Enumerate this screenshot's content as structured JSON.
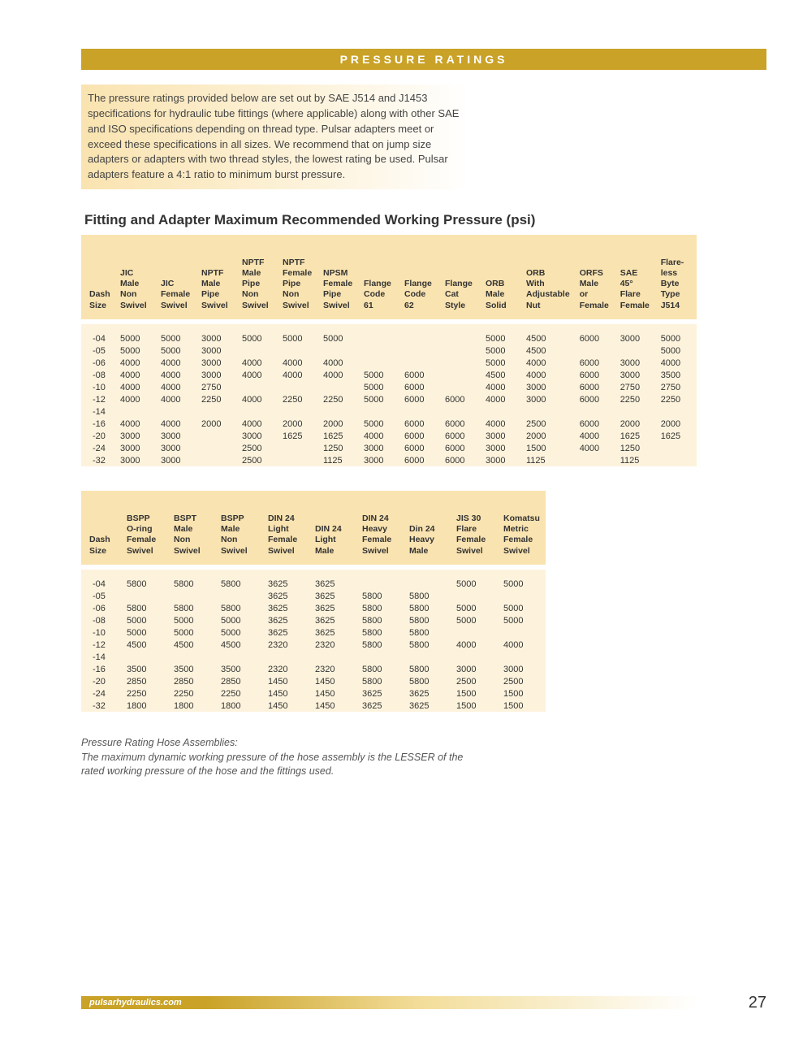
{
  "header": "PRESSURE RATINGS",
  "intro": "The pressure ratings provided below are set out by SAE J514 and J1453 specifications for hydraulic tube fittings (where applicable) along with other SAE and ISO specifications depending on thread type. Pulsar adapters meet or exceed these specifications in all sizes. We recommend that on jump size adapters or adapters with two thread styles, the lowest rating be used. Pulsar adapters feature a 4:1 ratio to minimum burst pressure.",
  "section_title": "Fitting and Adapter Maximum Recommended Working Pressure (psi)",
  "table1": {
    "columns": [
      "Dash\nSize",
      "JIC\nMale\nNon\nSwivel",
      "JIC\nFemale\nSwivel",
      "NPTF\nMale\nPipe\nSwivel",
      "NPTF\nMale\nPipe\nNon\nSwivel",
      "NPTF\nFemale\nPipe\nNon\nSwivel",
      "NPSM\nFemale\nPipe\nSwivel",
      "Flange\nCode\n61",
      "Flange\nCode\n62",
      "Flange\nCat\nStyle",
      "ORB\nMale\nSolid",
      "ORB\nWith\nAdjustable\nNut",
      "ORFS\nMale\nor\nFemale",
      "SAE\n45°\nFlare\nFemale",
      "Flare-\nless\nByte\nType\nJ514"
    ],
    "rows": [
      [
        "-04",
        "5000",
        "5000",
        "3000",
        "5000",
        "5000",
        "5000",
        "",
        "",
        "",
        "5000",
        "4500",
        "6000",
        "3000",
        "5000"
      ],
      [
        "-05",
        "5000",
        "5000",
        "3000",
        "",
        "",
        "",
        "",
        "",
        "",
        "5000",
        "4500",
        "",
        "",
        "5000"
      ],
      [
        "-06",
        "4000",
        "4000",
        "3000",
        "4000",
        "4000",
        "4000",
        "",
        "",
        "",
        "5000",
        "4000",
        "6000",
        "3000",
        "4000"
      ],
      [
        "-08",
        "4000",
        "4000",
        "3000",
        "4000",
        "4000",
        "4000",
        "5000",
        "6000",
        "",
        "4500",
        "4000",
        "6000",
        "3000",
        "3500"
      ],
      [
        "-10",
        "4000",
        "4000",
        "2750",
        "",
        "",
        "",
        "5000",
        "6000",
        "",
        "4000",
        "3000",
        "6000",
        "2750",
        "2750"
      ],
      [
        "-12",
        "4000",
        "4000",
        "2250",
        "4000",
        "2250",
        "2250",
        "5000",
        "6000",
        "6000",
        "4000",
        "3000",
        "6000",
        "2250",
        "2250"
      ],
      [
        "-14",
        "",
        "",
        "",
        "",
        "",
        "",
        "",
        "",
        "",
        "",
        "",
        "",
        "",
        ""
      ],
      [
        "-16",
        "4000",
        "4000",
        "2000",
        "4000",
        "2000",
        "2000",
        "5000",
        "6000",
        "6000",
        "4000",
        "2500",
        "6000",
        "2000",
        "2000"
      ],
      [
        "-20",
        "3000",
        "3000",
        "",
        "3000",
        "1625",
        "1625",
        "4000",
        "6000",
        "6000",
        "3000",
        "2000",
        "4000",
        "1625",
        "1625"
      ],
      [
        "-24",
        "3000",
        "3000",
        "",
        "2500",
        "",
        "1250",
        "3000",
        "6000",
        "6000",
        "3000",
        "1500",
        "4000",
        "1250",
        ""
      ],
      [
        "-32",
        "3000",
        "3000",
        "",
        "2500",
        "",
        "1125",
        "3000",
        "6000",
        "6000",
        "3000",
        "1125",
        "",
        "1125",
        ""
      ]
    ]
  },
  "table2": {
    "columns": [
      "Dash\nSize",
      "BSPP\nO-ring\nFemale\nSwivel",
      "BSPT\nMale\nNon\nSwivel",
      "BSPP\nMale\nNon\nSwivel",
      "DIN 24\nLight\nFemale\nSwivel",
      "DIN 24\nLight\nMale",
      "DIN 24\nHeavy\nFemale\nSwivel",
      "Din 24\nHeavy\nMale",
      "JIS 30\nFlare\nFemale\nSwivel",
      "Komatsu\nMetric\nFemale\nSwivel"
    ],
    "rows": [
      [
        "-04",
        "5800",
        "5800",
        "5800",
        "3625",
        "3625",
        "",
        "",
        "5000",
        "5000"
      ],
      [
        "-05",
        "",
        "",
        "",
        "3625",
        "3625",
        "5800",
        "5800",
        "",
        ""
      ],
      [
        "-06",
        "5800",
        "5800",
        "5800",
        "3625",
        "3625",
        "5800",
        "5800",
        "5000",
        "5000"
      ],
      [
        "-08",
        "5000",
        "5000",
        "5000",
        "3625",
        "3625",
        "5800",
        "5800",
        "5000",
        "5000"
      ],
      [
        "-10",
        "5000",
        "5000",
        "5000",
        "3625",
        "3625",
        "5800",
        "5800",
        "",
        ""
      ],
      [
        "-12",
        "4500",
        "4500",
        "4500",
        "2320",
        "2320",
        "5800",
        "5800",
        "4000",
        "4000"
      ],
      [
        "-14",
        "",
        "",
        "",
        "",
        "",
        "",
        "",
        "",
        ""
      ],
      [
        "-16",
        "3500",
        "3500",
        "3500",
        "2320",
        "2320",
        "5800",
        "5800",
        "3000",
        "3000"
      ],
      [
        "-20",
        "2850",
        "2850",
        "2850",
        "1450",
        "1450",
        "5800",
        "5800",
        "2500",
        "2500"
      ],
      [
        "-24",
        "2250",
        "2250",
        "2250",
        "1450",
        "1450",
        "3625",
        "3625",
        "1500",
        "1500"
      ],
      [
        "-32",
        "1800",
        "1800",
        "1800",
        "1450",
        "1450",
        "3625",
        "3625",
        "1500",
        "1500"
      ]
    ]
  },
  "footnote_title": "Pressure Rating Hose Assemblies:",
  "footnote_body": "The maximum dynamic working pressure of the hose assembly is the LESSER of the rated working pressure of the hose and the fittings used.",
  "footer_url": "pulsarhydraulics.com",
  "page_number": "27",
  "colors": {
    "bar": "#c9a227",
    "header_cell": "#f9e3b0",
    "body_cell": "#fdf3dc"
  }
}
